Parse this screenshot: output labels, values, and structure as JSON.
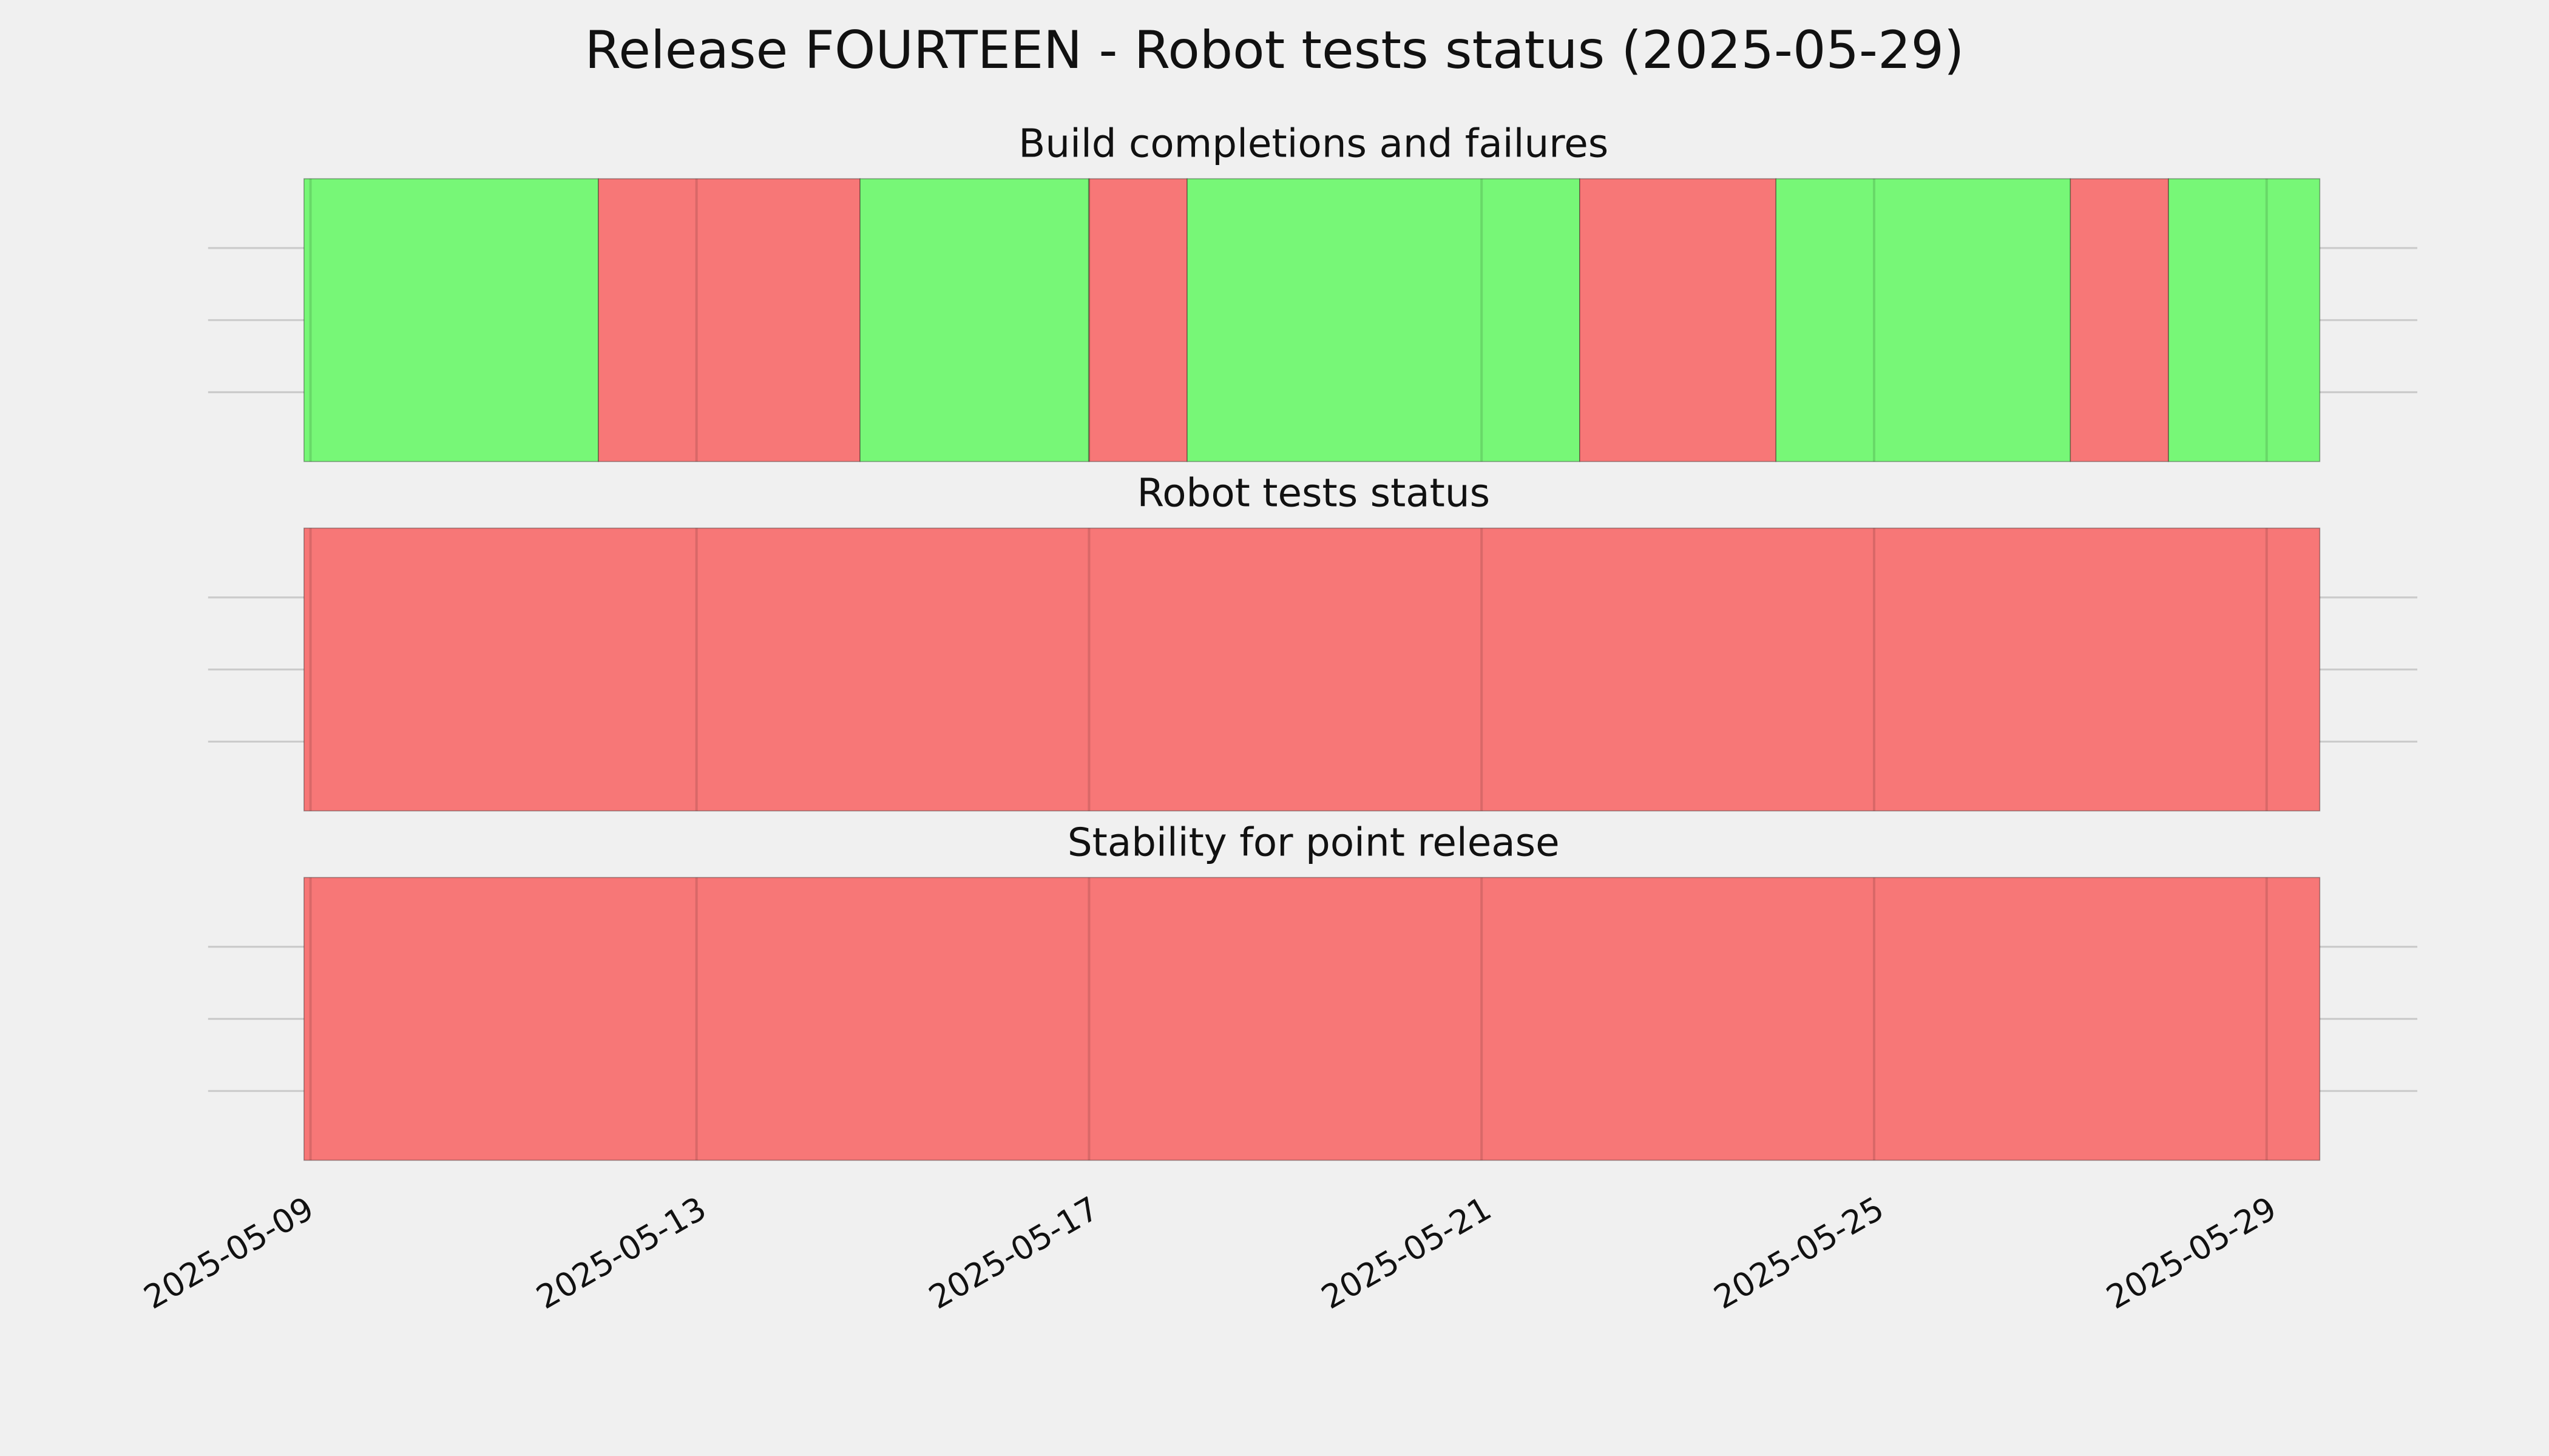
{
  "chart_data": {
    "type": "timeline",
    "title": "Release FOURTEEN - Robot tests status (2025-05-29)",
    "xlim": [
      "2025-05-09",
      "2025-05-29T13:00"
    ],
    "xticks": [
      "2025-05-09",
      "2025-05-13",
      "2025-05-17",
      "2025-05-21",
      "2025-05-25",
      "2025-05-29"
    ],
    "grid": true,
    "panels": [
      {
        "title": "Build completions and failures",
        "segments": [
          {
            "start": "2025-05-09",
            "end": "2025-05-12",
            "color": "#77f777"
          },
          {
            "start": "2025-05-12",
            "end": "2025-05-14T16:00",
            "color": "#f77777"
          },
          {
            "start": "2025-05-14T16:00",
            "end": "2025-05-17",
            "color": "#77f777"
          },
          {
            "start": "2025-05-17",
            "end": "2025-05-18",
            "color": "#f77777"
          },
          {
            "start": "2025-05-18",
            "end": "2025-05-22",
            "color": "#77f777"
          },
          {
            "start": "2025-05-22",
            "end": "2025-05-24",
            "color": "#f77777"
          },
          {
            "start": "2025-05-24",
            "end": "2025-05-27",
            "color": "#77f777"
          },
          {
            "start": "2025-05-27",
            "end": "2025-05-28",
            "color": "#f77777"
          },
          {
            "start": "2025-05-28",
            "end": "2025-05-29T13:00",
            "color": "#77f777"
          }
        ]
      },
      {
        "title": "Robot tests status",
        "segments": [
          {
            "start": "2025-05-09",
            "end": "2025-05-29T13:00",
            "color": "#f77777"
          }
        ]
      },
      {
        "title": "Stability for point release",
        "segments": [
          {
            "start": "2025-05-09",
            "end": "2025-05-29T13:00",
            "color": "#f77777"
          }
        ]
      }
    ]
  }
}
